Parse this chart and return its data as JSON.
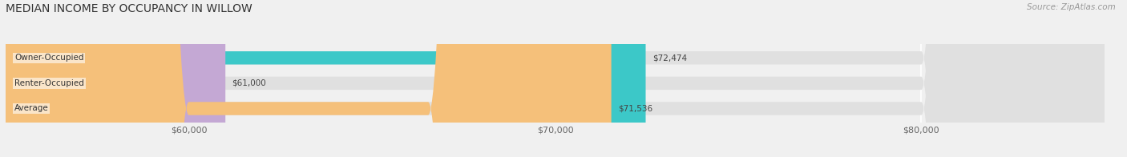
{
  "title": "MEDIAN INCOME BY OCCUPANCY IN WILLOW",
  "source": "Source: ZipAtlas.com",
  "categories": [
    "Owner-Occupied",
    "Renter-Occupied",
    "Average"
  ],
  "values": [
    72474,
    61000,
    71536
  ],
  "bar_colors": [
    "#3cc8c8",
    "#c4a8d4",
    "#f5c07a"
  ],
  "value_labels": [
    "$72,474",
    "$61,000",
    "$71,536"
  ],
  "xlim_min": 55000,
  "xlim_max": 85000,
  "xticks": [
    60000,
    70000,
    80000
  ],
  "xtick_labels": [
    "$60,000",
    "$70,000",
    "$80,000"
  ],
  "background_color": "#f0f0f0",
  "bar_background_color": "#e0e0e0",
  "title_fontsize": 10,
  "source_fontsize": 7.5,
  "bar_height": 0.52
}
